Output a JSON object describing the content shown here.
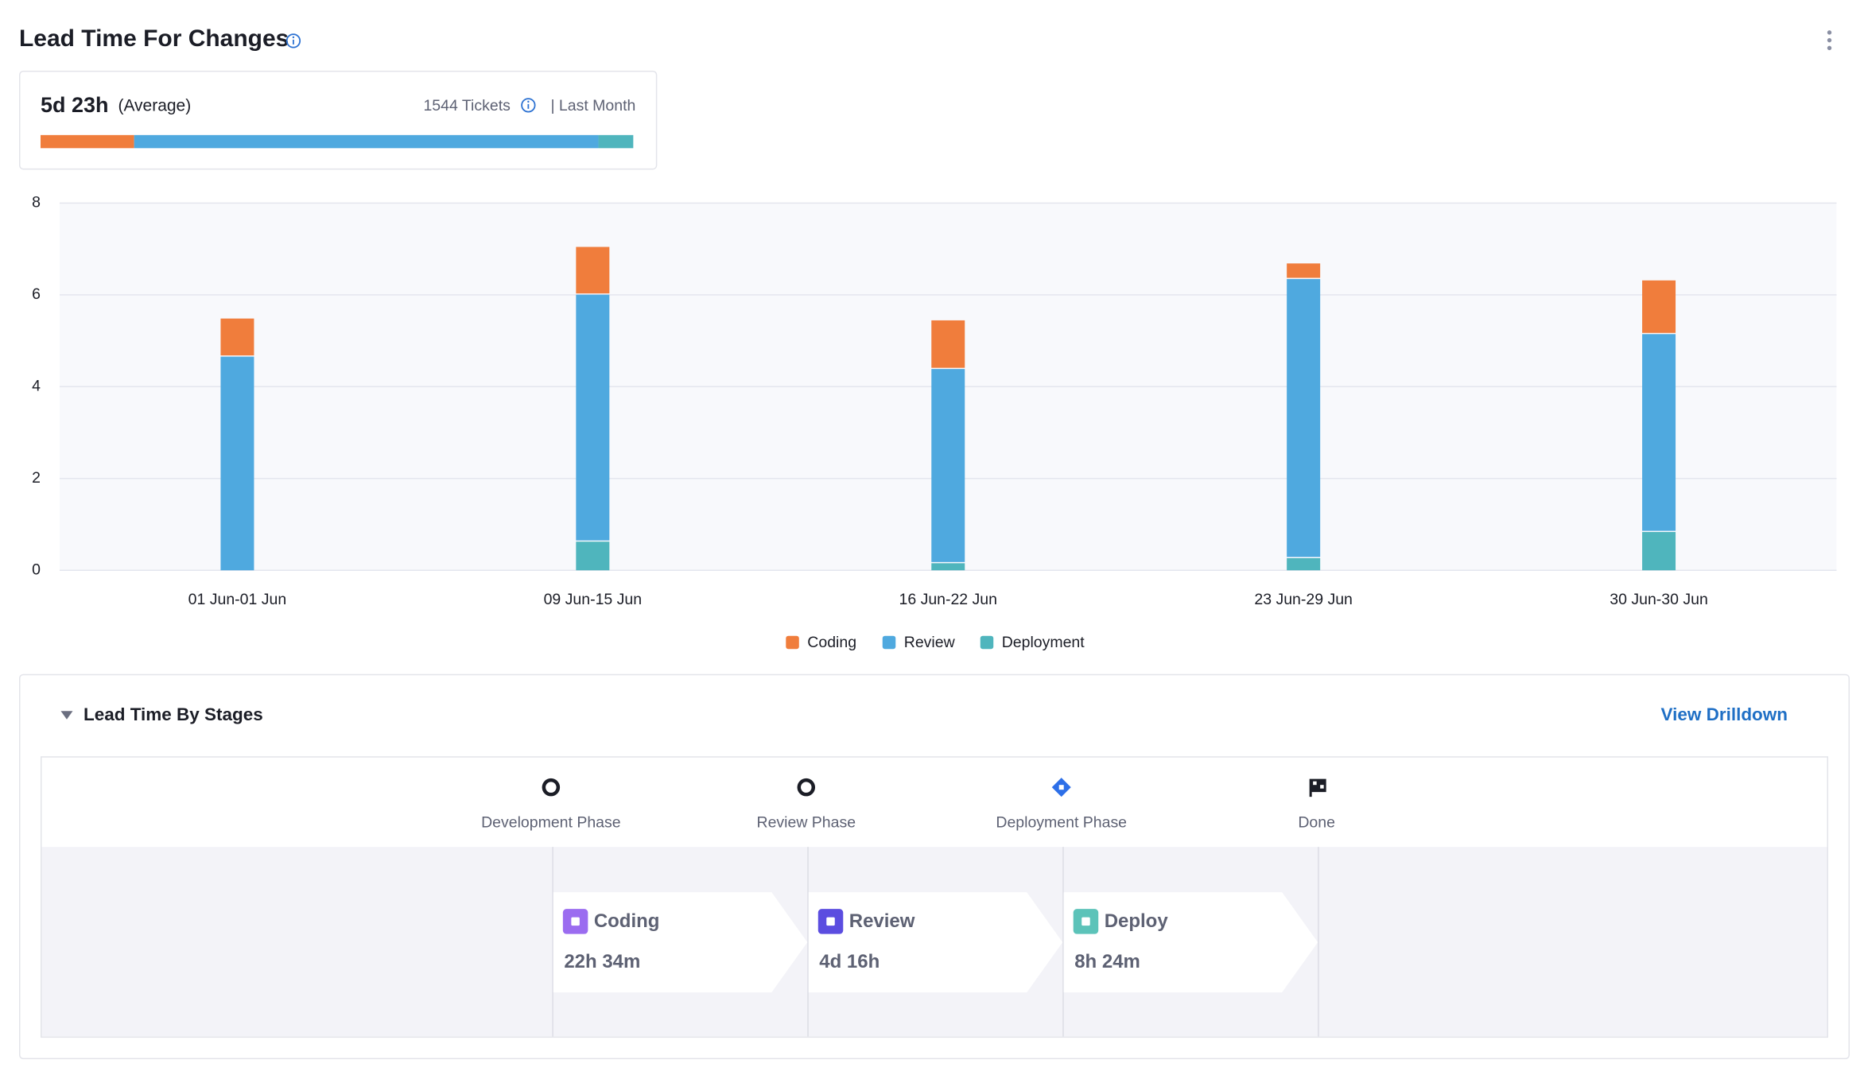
{
  "header": {
    "title": "Lead Time For Changes"
  },
  "summary": {
    "average": "5d 23h",
    "average_label": "(Average)",
    "tickets": "1544 Tickets",
    "period": "| Last Month",
    "bar_hours": [
      22.57,
      112,
      8.4
    ]
  },
  "chart_data": {
    "type": "bar",
    "stacked": true,
    "categories": [
      "01 Jun-01 Jun",
      "09 Jun-15 Jun",
      "16 Jun-22 Jun",
      "23 Jun-29 Jun",
      "30 Jun-30 Jun"
    ],
    "series": [
      {
        "name": "Coding",
        "color": "#f07d3c",
        "values": [
          0.83,
          1.04,
          1.06,
          0.34,
          1.17
        ]
      },
      {
        "name": "Review",
        "color": "#4fa9df",
        "values": [
          4.68,
          5.38,
          4.23,
          6.08,
          4.31
        ]
      },
      {
        "name": "Deployment",
        "color": "#4fb5bd",
        "values": [
          0,
          0.65,
          0.18,
          0.29,
          0.86
        ]
      }
    ],
    "ylim": [
      0,
      8
    ],
    "yticks": [
      0,
      2,
      4,
      6,
      8
    ],
    "grid": true,
    "legend": "bottom"
  },
  "stages": {
    "title": "Lead Time By Stages",
    "action": "View Drilldown",
    "phases": [
      "Development Phase",
      "Review Phase",
      "Deployment Phase",
      "Done"
    ],
    "steps": [
      {
        "label": "Coding",
        "duration": "22h 34m"
      },
      {
        "label": "Review",
        "duration": "4d 16h"
      },
      {
        "label": "Deploy",
        "duration": "8h 24m"
      }
    ]
  }
}
